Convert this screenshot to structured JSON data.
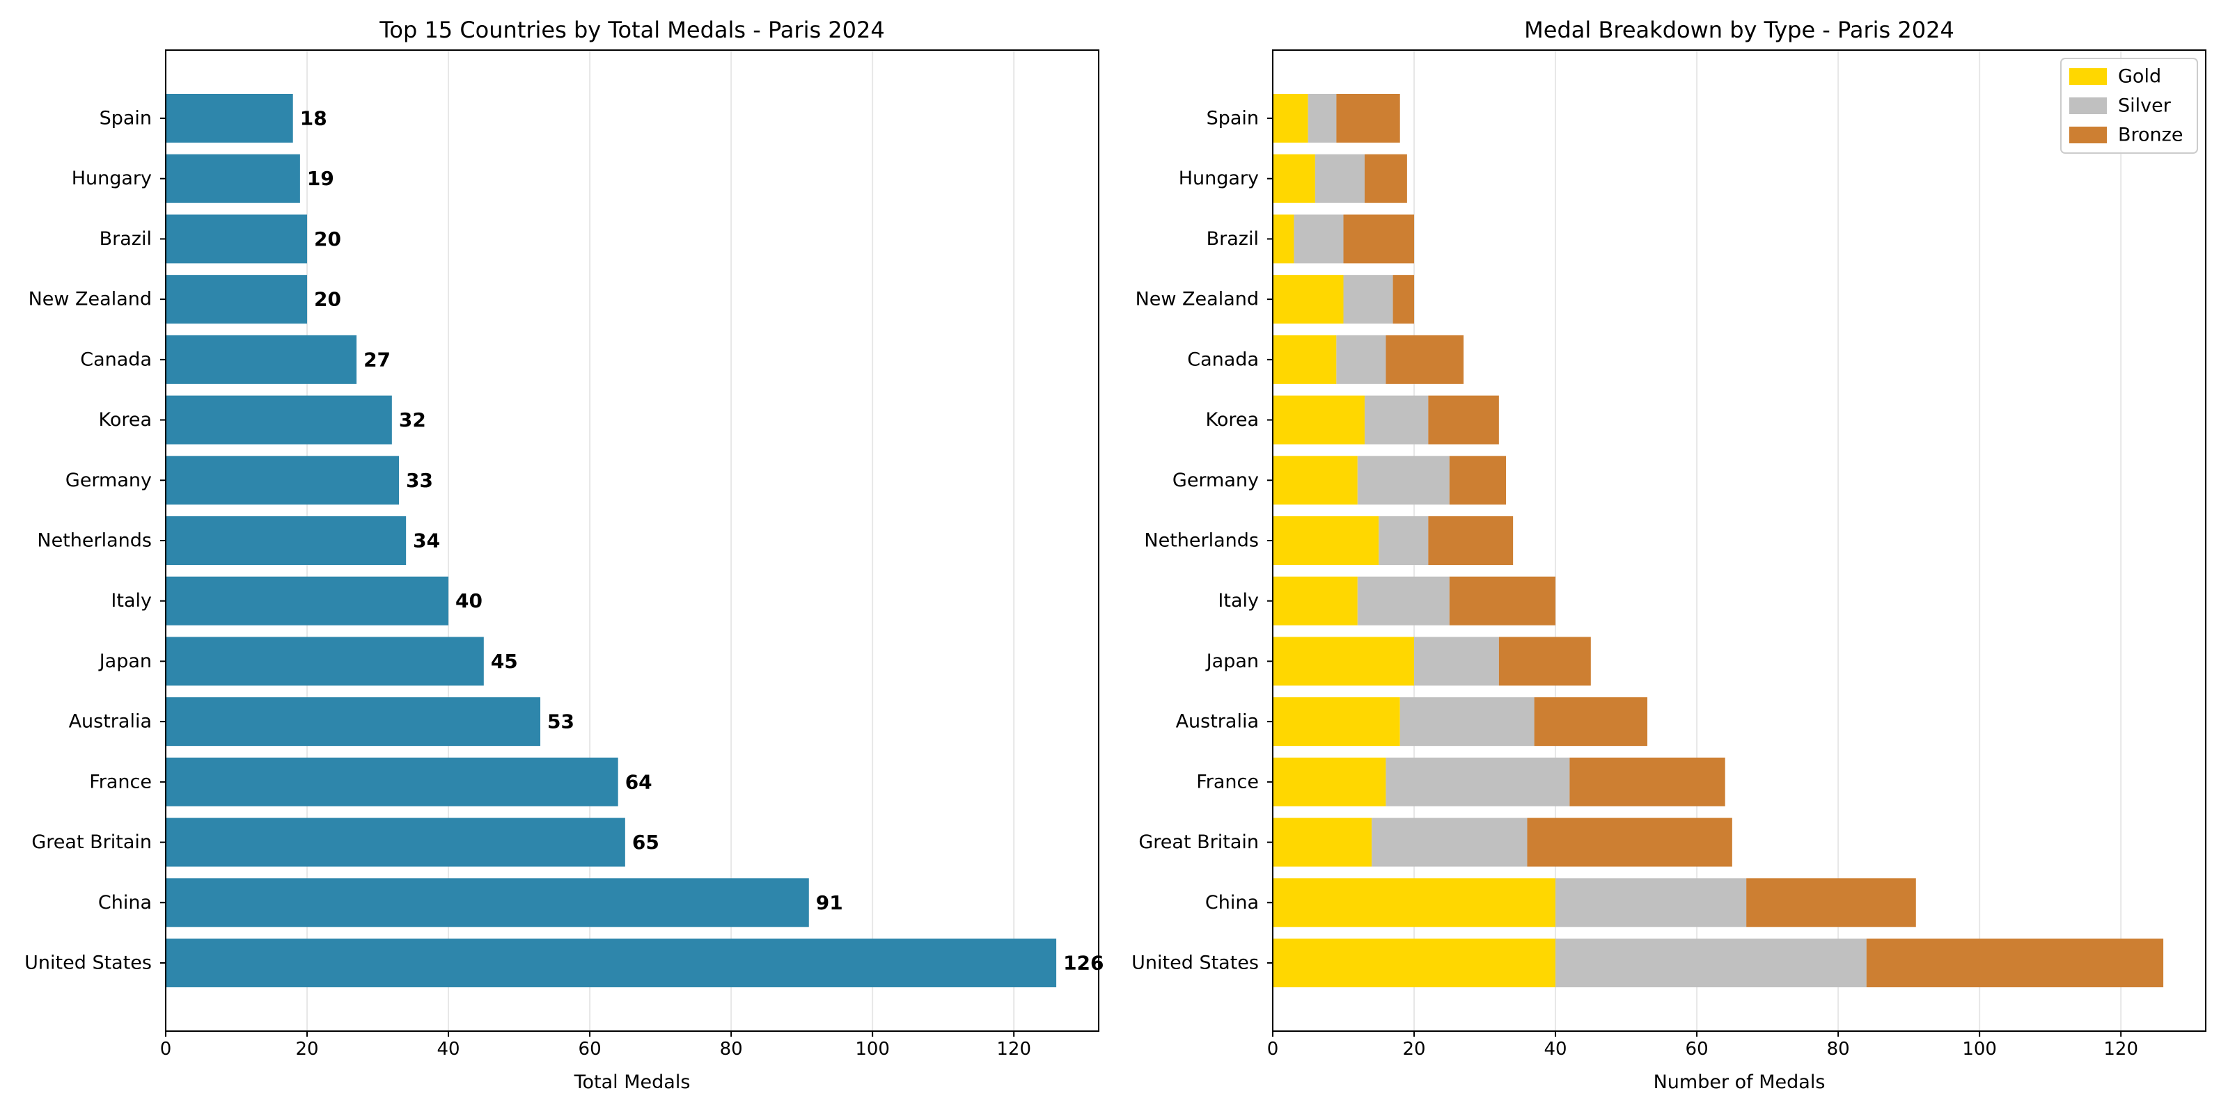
{
  "chart_data": [
    {
      "type": "bar",
      "orientation": "horizontal",
      "title": "Top 15 Countries by Total Medals - Paris 2024",
      "xlabel": "Total Medals",
      "ylabel": "",
      "xlim": [
        0,
        132
      ],
      "xticks": [
        0,
        20,
        40,
        60,
        80,
        100,
        120
      ],
      "grid": "vertical",
      "bar_color": "#2E86AB",
      "categories": [
        "United States",
        "China",
        "Great Britain",
        "France",
        "Australia",
        "Japan",
        "Italy",
        "Netherlands",
        "Germany",
        "Korea",
        "Canada",
        "New Zealand",
        "Brazil",
        "Hungary",
        "Spain"
      ],
      "values": [
        126,
        91,
        65,
        64,
        53,
        45,
        40,
        34,
        33,
        32,
        27,
        20,
        20,
        19,
        18
      ],
      "data_labels": [
        "126",
        "91",
        "65",
        "64",
        "53",
        "45",
        "40",
        "34",
        "33",
        "32",
        "27",
        "20",
        "20",
        "19",
        "18"
      ]
    },
    {
      "type": "bar",
      "orientation": "horizontal",
      "stacked": true,
      "title": "Medal Breakdown by Type - Paris 2024",
      "xlabel": "Number of Medals",
      "ylabel": "",
      "xlim": [
        0,
        132
      ],
      "xticks": [
        0,
        20,
        40,
        60,
        80,
        100,
        120
      ],
      "grid": "vertical",
      "legend_position": "top-right",
      "categories": [
        "United States",
        "China",
        "Great Britain",
        "France",
        "Australia",
        "Japan",
        "Italy",
        "Netherlands",
        "Germany",
        "Korea",
        "Canada",
        "New Zealand",
        "Brazil",
        "Hungary",
        "Spain"
      ],
      "series": [
        {
          "name": "Gold",
          "color": "#FFD700",
          "values": [
            40,
            40,
            14,
            16,
            18,
            20,
            12,
            15,
            12,
            13,
            9,
            10,
            3,
            6,
            5
          ]
        },
        {
          "name": "Silver",
          "color": "#C0C0C0",
          "values": [
            44,
            27,
            22,
            26,
            19,
            12,
            13,
            7,
            13,
            9,
            7,
            7,
            7,
            7,
            4
          ]
        },
        {
          "name": "Bronze",
          "color": "#CD7F32",
          "values": [
            42,
            24,
            29,
            22,
            16,
            13,
            15,
            12,
            8,
            10,
            11,
            3,
            10,
            6,
            9
          ]
        }
      ]
    }
  ]
}
